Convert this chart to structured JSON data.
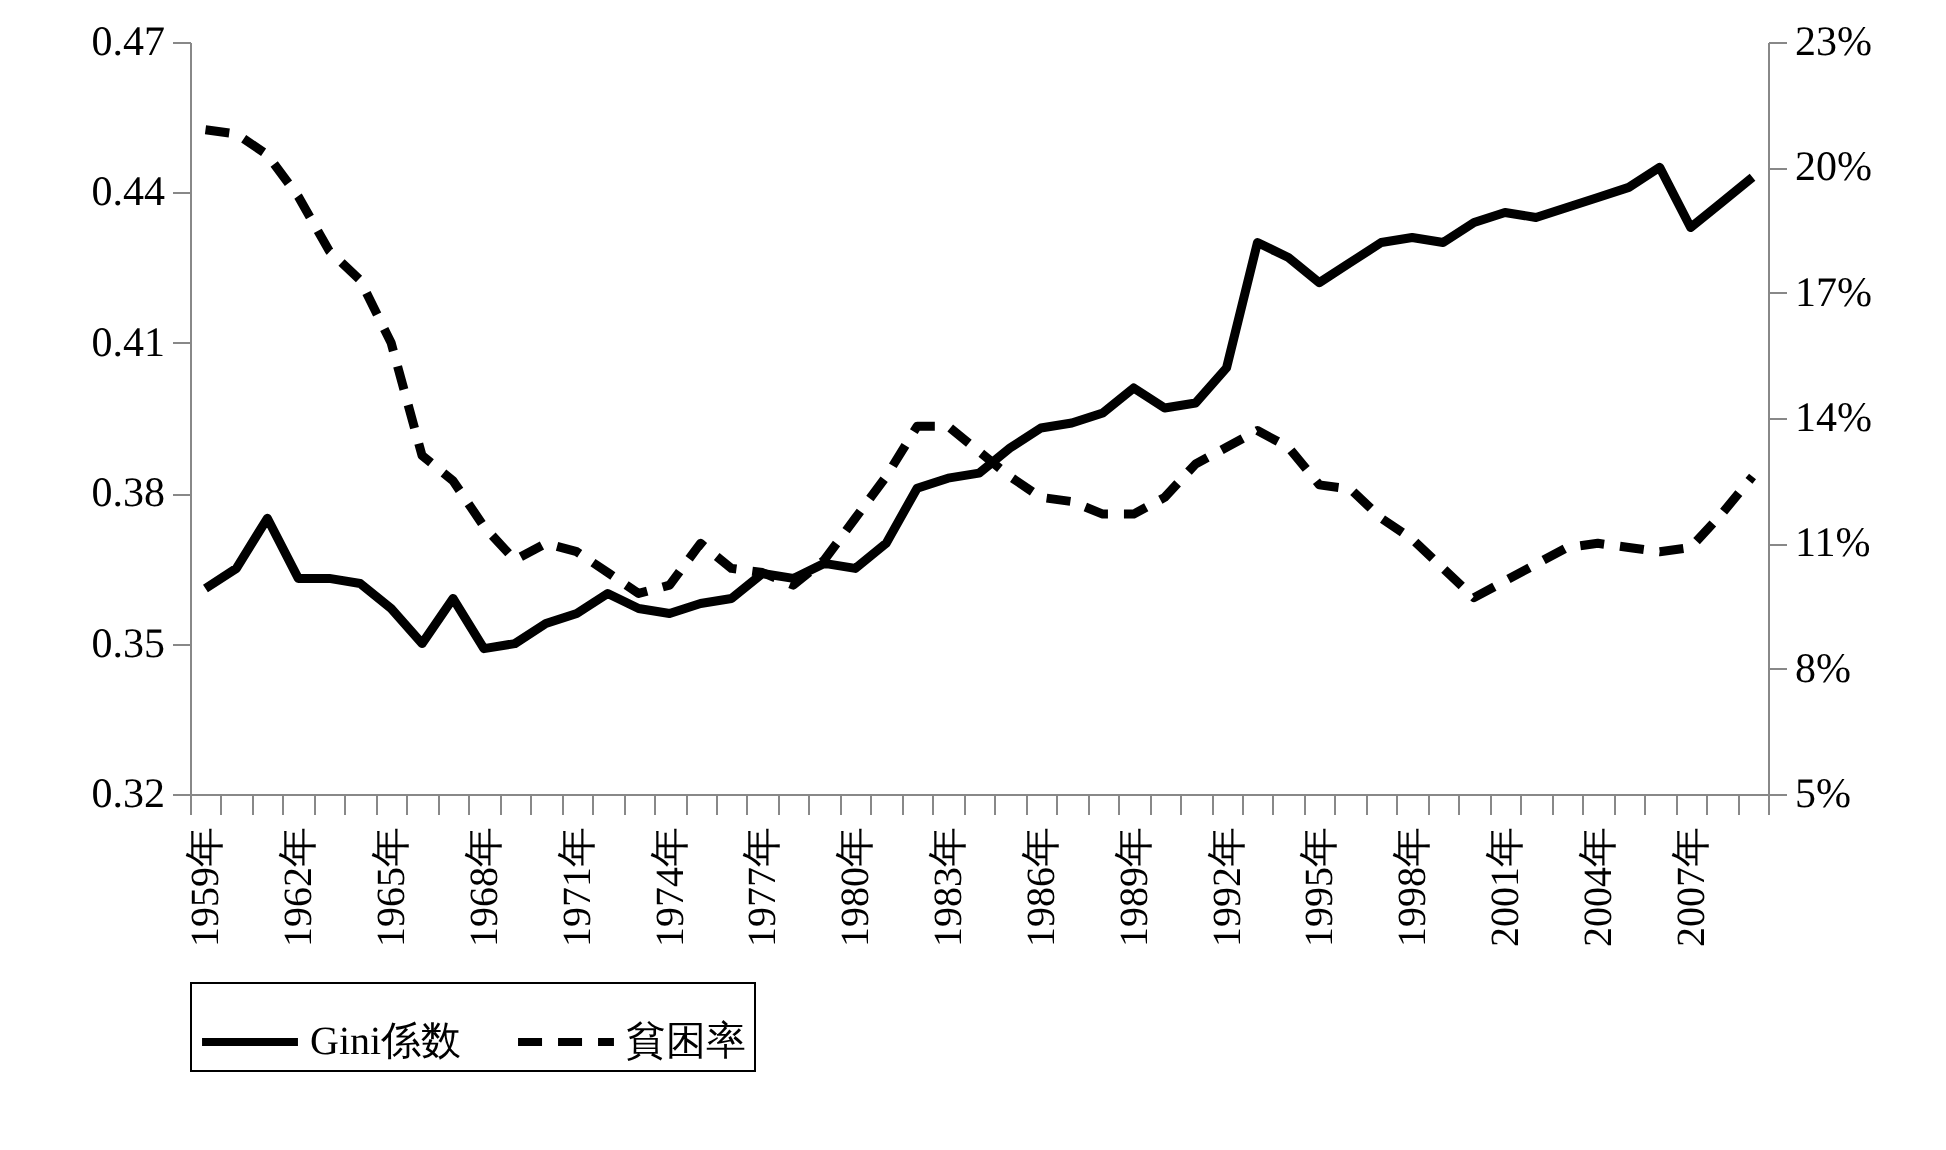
{
  "chart_data": {
    "type": "line",
    "categories": [
      "1959年",
      null,
      null,
      "1962年",
      null,
      null,
      "1965年",
      null,
      null,
      "1968年",
      null,
      null,
      "1971年",
      null,
      null,
      "1974年",
      null,
      null,
      "1977年",
      null,
      null,
      "1980年",
      null,
      null,
      "1983年",
      null,
      null,
      "1986年",
      null,
      null,
      "1989年",
      null,
      null,
      "1992年",
      null,
      null,
      "1995年",
      null,
      null,
      "1998年",
      null,
      null,
      "2001年",
      null,
      null,
      "2004年",
      null,
      null,
      "2007年",
      null,
      null
    ],
    "series": [
      {
        "name": "Gini係数",
        "color": "#000000",
        "line_style": "solid",
        "values": [
          0.361,
          0.365,
          0.375,
          0.363,
          0.363,
          0.362,
          0.357,
          0.35,
          0.359,
          0.349,
          0.35,
          0.354,
          0.356,
          0.36,
          0.357,
          0.356,
          0.358,
          0.359,
          0.364,
          0.363,
          0.366,
          0.365,
          0.37,
          0.381,
          0.383,
          0.384,
          0.389,
          0.393,
          0.394,
          0.396,
          0.401,
          0.397,
          0.398,
          0.405,
          0.43,
          0.427,
          0.422,
          0.426,
          0.43,
          0.431,
          0.43,
          0.434,
          0.436,
          0.435,
          0.437,
          0.439,
          0.441,
          0.445,
          0.433,
          0.438,
          0.443
        ]
      },
      {
        "name": "貧困率",
        "color": "#000000",
        "line_style": "dashed",
        "axis": "y2",
        "values": [
          20.9,
          20.8,
          20.3,
          19.3,
          18.0,
          17.3,
          15.8,
          13.1,
          12.5,
          11.4,
          10.6,
          11.0,
          10.8,
          10.3,
          9.8,
          10.0,
          11.0,
          10.4,
          10.3,
          10.0,
          10.6,
          11.6,
          12.6,
          13.8,
          13.8,
          13.2,
          12.6,
          12.1,
          12.0,
          11.7,
          11.7,
          12.1,
          12.9,
          13.3,
          13.7,
          13.3,
          12.4,
          12.3,
          11.6,
          11.1,
          10.4,
          9.7,
          10.1,
          10.5,
          10.9,
          11.0,
          10.9,
          10.8,
          10.9,
          11.7,
          12.6
        ]
      }
    ],
    "ylim": [
      0.32,
      0.47
    ],
    "yticks": [
      {
        "value": 0.32,
        "label": "0.32"
      },
      {
        "value": 0.35,
        "label": "0.35"
      },
      {
        "value": 0.38,
        "label": "0.38"
      },
      {
        "value": 0.41,
        "label": "0.41"
      },
      {
        "value": 0.44,
        "label": "0.44"
      },
      {
        "value": 0.47,
        "label": "0.47"
      }
    ],
    "y2lim": [
      5,
      23
    ],
    "y2ticks": [
      {
        "value": 5,
        "label": "5%"
      },
      {
        "value": 8,
        "label": "8%"
      },
      {
        "value": 11,
        "label": "11%"
      },
      {
        "value": 14,
        "label": "14%"
      },
      {
        "value": 17,
        "label": "17%"
      },
      {
        "value": 20,
        "label": "20%"
      },
      {
        "value": 23,
        "label": "23%"
      }
    ],
    "legend": "bottom"
  }
}
